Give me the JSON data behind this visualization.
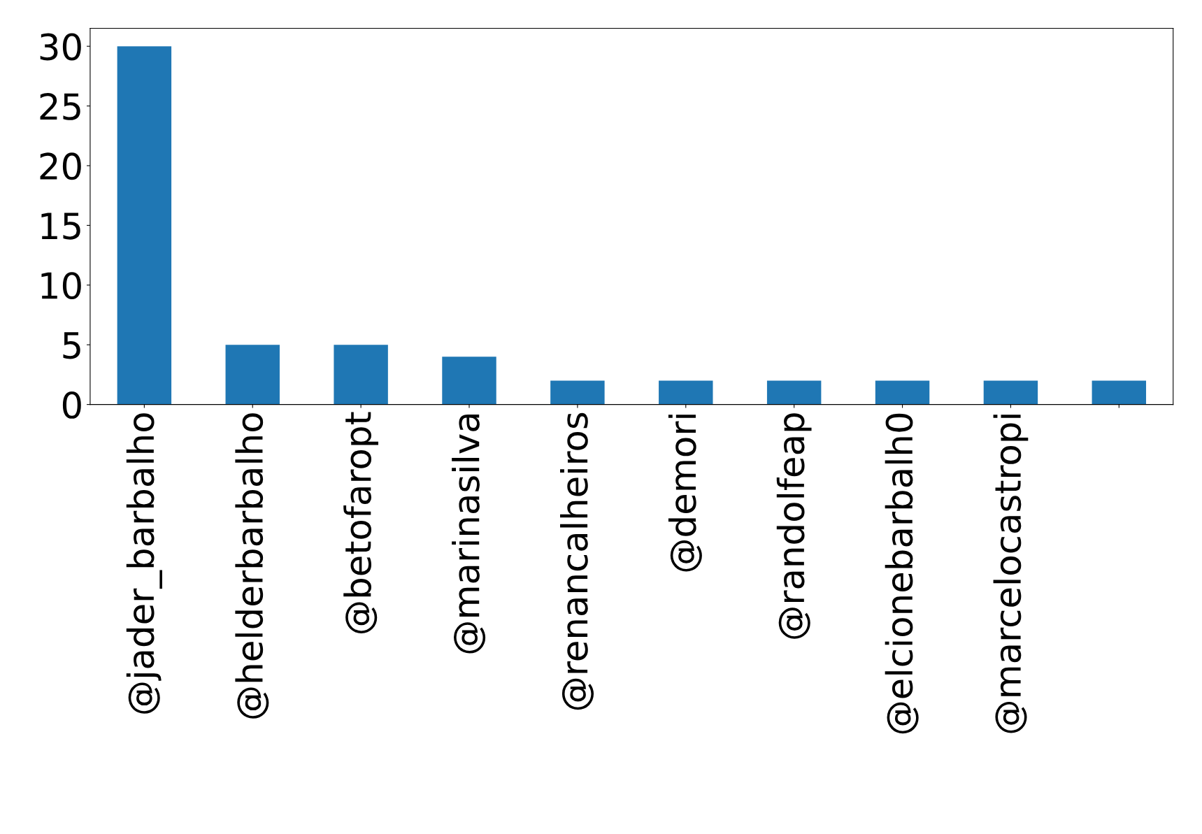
{
  "chart_data": {
    "type": "bar",
    "categories": [
      "@jader_barbalho",
      "@helderbarbalho",
      "@betofaropt",
      "@marinasilva",
      "@renancalheiros",
      "@demori",
      "@randolfeap",
      "@elcionebarbalh0",
      "@marcelocastropi",
      null
    ],
    "values": [
      30,
      5,
      5,
      4,
      2,
      2,
      2,
      2,
      2,
      2
    ],
    "color": "#1f77b4",
    "ylim": [
      0,
      31.5
    ],
    "yticks": [
      0,
      5,
      10,
      15,
      20,
      25,
      30
    ],
    "grid": false,
    "legend": false
  }
}
